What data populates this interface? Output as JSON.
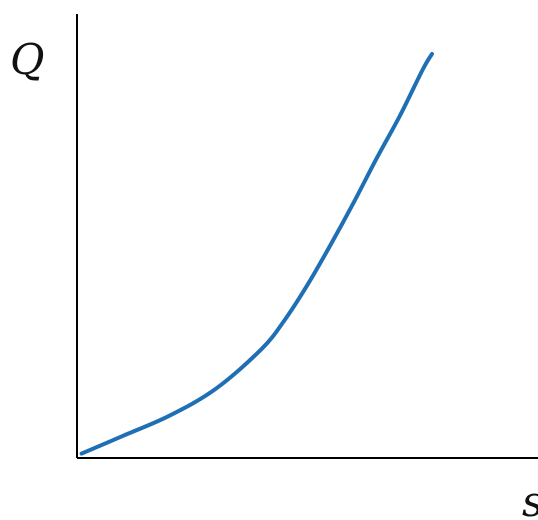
{
  "chart_data": {
    "type": "line",
    "title": "",
    "xlabel": "s",
    "ylabel": "Q",
    "grid": false,
    "legend": "none",
    "xlim": [
      0,
      10
    ],
    "ylim": [
      0,
      10
    ],
    "series": [
      {
        "color": "#1f6fb5",
        "x": [
          0.1,
          1.0,
          2.0,
          3.0,
          4.0,
          4.5,
          5.0,
          5.5,
          6.0,
          6.5,
          7.0,
          7.5,
          7.7
        ],
        "y": [
          0.1,
          0.5,
          0.95,
          1.55,
          2.45,
          3.1,
          3.9,
          4.8,
          5.75,
          6.75,
          7.7,
          8.75,
          9.1
        ]
      }
    ],
    "axis_color": "#000000"
  }
}
